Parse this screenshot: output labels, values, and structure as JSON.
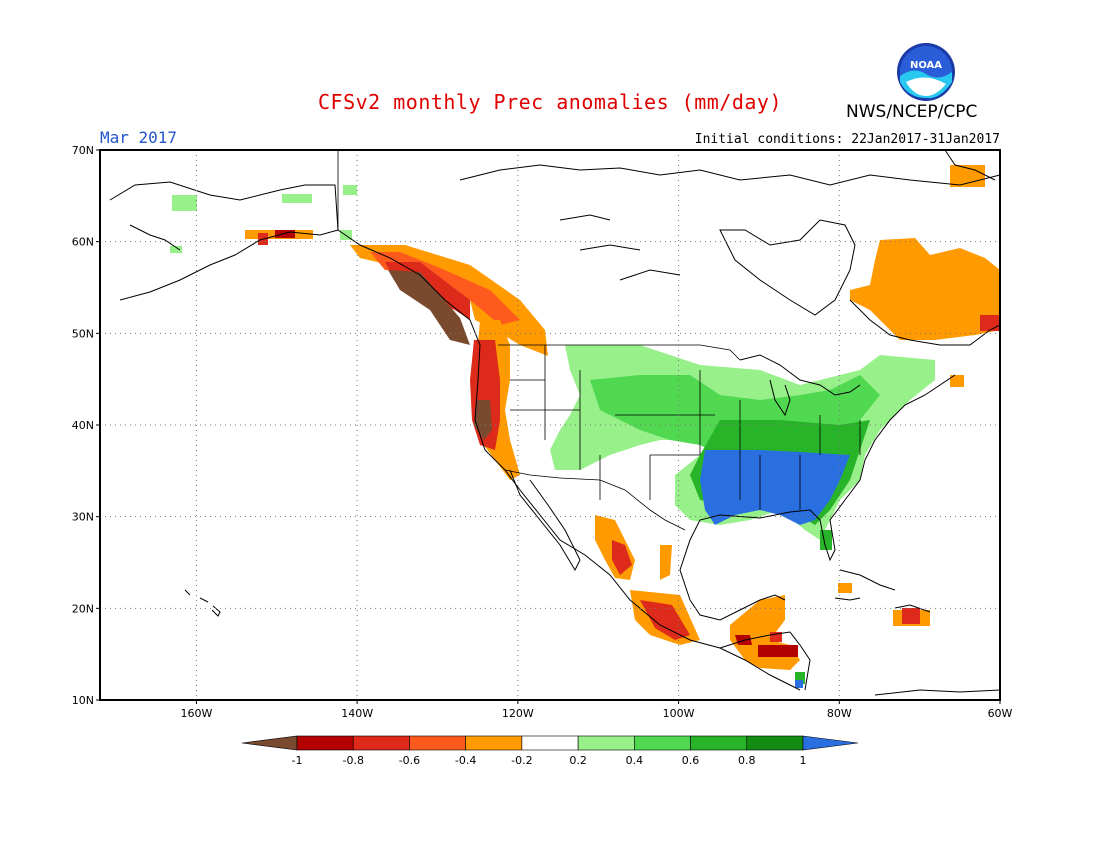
{
  "header": {
    "title": "CFSv2 monthly Prec anomalies (mm/day)",
    "agency": "NWS/NCEP/CPC",
    "logo_text": "NOAA",
    "month": "Mar 2017",
    "initial_conditions": "Initial conditions: 22Jan2017-31Jan2017"
  },
  "map": {
    "region": "North America",
    "projection": "lat-lon",
    "lon_range": [
      -172,
      -60
    ],
    "lat_range": [
      10,
      70
    ],
    "grid": true,
    "lat_ticks": [
      "70N",
      "60N",
      "50N",
      "40N",
      "30N",
      "20N",
      "10N"
    ],
    "lon_ticks": [
      "160W",
      "140W",
      "120W",
      "100W",
      "80W",
      "60W"
    ]
  },
  "colorbar": {
    "labels": [
      "-1",
      "-0.8",
      "-0.6",
      "-0.4",
      "-0.2",
      "0.2",
      "0.4",
      "0.6",
      "0.8",
      "1"
    ],
    "colors": [
      "#7a4a2e",
      "#b30000",
      "#dd2a1a",
      "#ff5a1e",
      "#ff9a00",
      "#ffffff",
      "#98f08a",
      "#50d850",
      "#28b428",
      "#148c14",
      "#2a6fe0"
    ]
  }
}
